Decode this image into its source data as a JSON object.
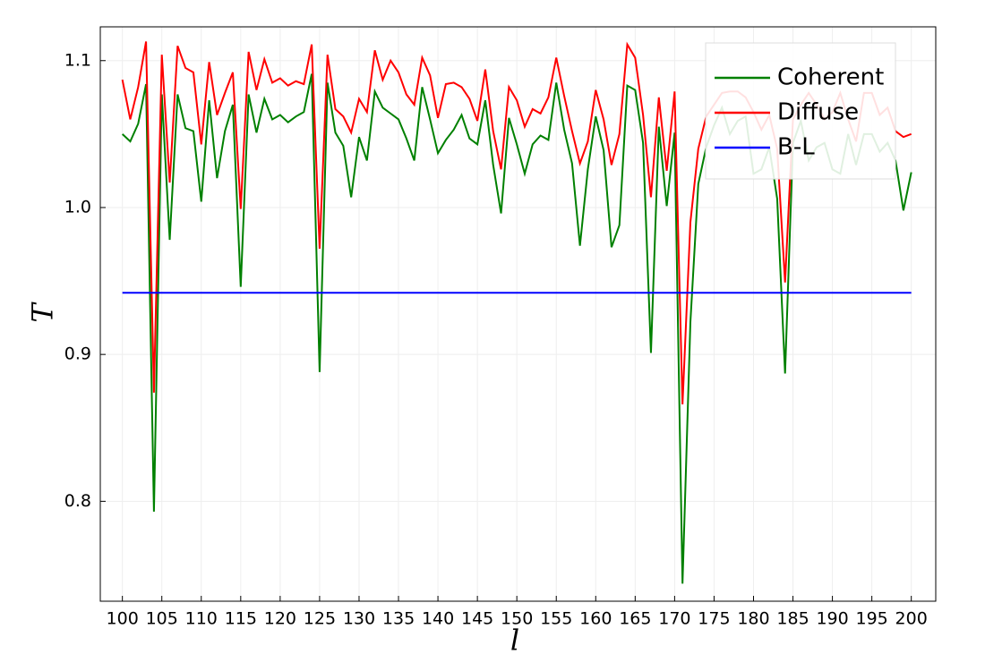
{
  "chart_data": {
    "type": "line",
    "xlabel": "l",
    "ylabel": "T",
    "x": [
      100,
      101,
      102,
      103,
      104,
      105,
      106,
      107,
      108,
      109,
      110,
      111,
      112,
      113,
      114,
      115,
      116,
      117,
      118,
      119,
      120,
      121,
      122,
      123,
      124,
      125,
      126,
      127,
      128,
      129,
      130,
      131,
      132,
      133,
      134,
      135,
      136,
      137,
      138,
      139,
      140,
      141,
      142,
      143,
      144,
      145,
      146,
      147,
      148,
      149,
      150,
      151,
      152,
      153,
      154,
      155,
      156,
      157,
      158,
      159,
      160,
      161,
      162,
      163,
      164,
      165,
      166,
      167,
      168,
      169,
      170,
      171,
      172,
      173,
      174,
      175,
      176,
      177,
      178,
      179,
      180,
      181,
      182,
      183,
      184,
      185,
      186,
      187,
      188,
      189,
      190,
      191,
      192,
      193,
      194,
      195,
      196,
      197,
      198,
      199,
      200
    ],
    "series": [
      {
        "name": "Coherent",
        "color": "#008000",
        "values": [
          1.05,
          1.045,
          1.057,
          1.084,
          0.793,
          1.077,
          0.978,
          1.077,
          1.054,
          1.052,
          1.004,
          1.073,
          1.02,
          1.052,
          1.07,
          0.946,
          1.077,
          1.051,
          1.074,
          1.06,
          1.063,
          1.058,
          1.062,
          1.065,
          1.091,
          0.888,
          1.085,
          1.051,
          1.042,
          1.007,
          1.048,
          1.032,
          1.079,
          1.068,
          1.064,
          1.06,
          1.047,
          1.032,
          1.082,
          1.06,
          1.037,
          1.046,
          1.053,
          1.063,
          1.047,
          1.043,
          1.073,
          1.029,
          0.996,
          1.061,
          1.043,
          1.023,
          1.043,
          1.049,
          1.046,
          1.085,
          1.053,
          1.03,
          0.974,
          1.026,
          1.062,
          1.039,
          0.973,
          0.988,
          1.083,
          1.08,
          1.044,
          0.901,
          1.055,
          1.001,
          1.051,
          0.744,
          0.922,
          1.016,
          1.041,
          1.056,
          1.068,
          1.05,
          1.059,
          1.062,
          1.023,
          1.026,
          1.041,
          1.006,
          0.887,
          1.044,
          1.059,
          1.032,
          1.041,
          1.044,
          1.026,
          1.023,
          1.05,
          1.029,
          1.05,
          1.05,
          1.038,
          1.044,
          1.032,
          0.998,
          1.024
        ]
      },
      {
        "name": "Diffuse",
        "color": "#ff0000",
        "values": [
          1.087,
          1.06,
          1.082,
          1.113,
          0.874,
          1.104,
          1.017,
          1.11,
          1.095,
          1.092,
          1.043,
          1.099,
          1.063,
          1.078,
          1.092,
          0.999,
          1.106,
          1.08,
          1.101,
          1.085,
          1.088,
          1.083,
          1.086,
          1.084,
          1.111,
          0.972,
          1.104,
          1.067,
          1.062,
          1.051,
          1.074,
          1.065,
          1.107,
          1.087,
          1.1,
          1.092,
          1.077,
          1.07,
          1.102,
          1.09,
          1.061,
          1.084,
          1.085,
          1.082,
          1.074,
          1.059,
          1.094,
          1.052,
          1.026,
          1.082,
          1.073,
          1.055,
          1.067,
          1.064,
          1.075,
          1.102,
          1.076,
          1.052,
          1.03,
          1.045,
          1.08,
          1.06,
          1.029,
          1.05,
          1.111,
          1.102,
          1.063,
          1.007,
          1.075,
          1.025,
          1.079,
          0.866,
          0.99,
          1.04,
          1.062,
          1.07,
          1.078,
          1.079,
          1.079,
          1.075,
          1.065,
          1.053,
          1.063,
          1.04,
          0.949,
          1.06,
          1.07,
          1.078,
          1.07,
          1.06,
          1.065,
          1.078,
          1.06,
          1.045,
          1.078,
          1.078,
          1.063,
          1.068,
          1.052,
          1.048,
          1.05
        ]
      },
      {
        "name": "B-L",
        "color": "#0000ff",
        "values": [
          0.942,
          0.942,
          0.942,
          0.942,
          0.942,
          0.942,
          0.942,
          0.942,
          0.942,
          0.942,
          0.942,
          0.942,
          0.942,
          0.942,
          0.942,
          0.942,
          0.942,
          0.942,
          0.942,
          0.942,
          0.942,
          0.942,
          0.942,
          0.942,
          0.942,
          0.942,
          0.942,
          0.942,
          0.942,
          0.942,
          0.942,
          0.942,
          0.942,
          0.942,
          0.942,
          0.942,
          0.942,
          0.942,
          0.942,
          0.942,
          0.942,
          0.942,
          0.942,
          0.942,
          0.942,
          0.942,
          0.942,
          0.942,
          0.942,
          0.942,
          0.942,
          0.942,
          0.942,
          0.942,
          0.942,
          0.942,
          0.942,
          0.942,
          0.942,
          0.942,
          0.942,
          0.942,
          0.942,
          0.942,
          0.942,
          0.942,
          0.942,
          0.942,
          0.942,
          0.942,
          0.942,
          0.942,
          0.942,
          0.942,
          0.942,
          0.942,
          0.942,
          0.942,
          0.942,
          0.942,
          0.942,
          0.942,
          0.942,
          0.942,
          0.942,
          0.942,
          0.942,
          0.942,
          0.942,
          0.942,
          0.942,
          0.942,
          0.942,
          0.942,
          0.942,
          0.942,
          0.942,
          0.942,
          0.942,
          0.942,
          0.942
        ]
      }
    ],
    "xlim": [
      97.2,
      203.1
    ],
    "ylim": [
      0.732,
      1.123
    ],
    "xticks": [
      100,
      105,
      110,
      115,
      120,
      125,
      130,
      135,
      140,
      145,
      150,
      155,
      160,
      165,
      170,
      175,
      180,
      185,
      190,
      195,
      200
    ],
    "yticks": [
      0.8,
      0.9,
      {
        "value": 1,
        "label": "1.0"
      },
      1.1
    ],
    "grid": true,
    "legend": "top-right"
  }
}
